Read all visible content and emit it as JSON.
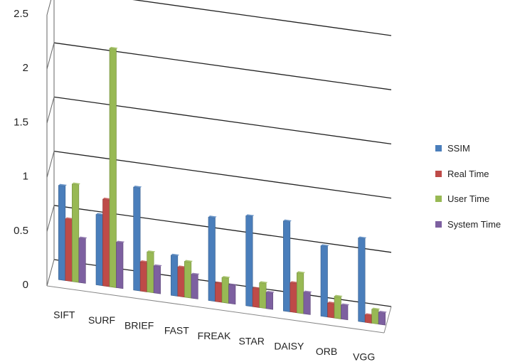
{
  "chart_data": {
    "type": "bar",
    "title": "",
    "xlabel": "",
    "ylabel": "",
    "categories": [
      "SIFT",
      "SURF",
      "BRIEF",
      "FAST",
      "FREAK",
      "STAR",
      "DAISY",
      "ORB",
      "VGG"
    ],
    "y_ticks": [
      "0",
      "0.5",
      "1",
      "1.5",
      "2",
      "2.5"
    ],
    "ylim": [
      0,
      2.5
    ],
    "grid": true,
    "legend_position": "right",
    "series": [
      {
        "name": "SSIM",
        "color": "#4a7ebb",
        "values": [
          0.87,
          0.65,
          0.95,
          0.37,
          0.77,
          0.83,
          0.83,
          0.65,
          0.77
        ]
      },
      {
        "name": "Real Time",
        "color": "#be4b48",
        "values": [
          0.57,
          0.8,
          0.27,
          0.27,
          0.17,
          0.17,
          0.27,
          0.13,
          0.07
        ]
      },
      {
        "name": "User Time",
        "color": "#98b954",
        "values": [
          0.9,
          2.2,
          0.37,
          0.33,
          0.23,
          0.23,
          0.37,
          0.2,
          0.13
        ]
      },
      {
        "name": "System Time",
        "color": "#7d60a0",
        "values": [
          0.41,
          0.42,
          0.25,
          0.22,
          0.17,
          0.15,
          0.2,
          0.13,
          0.11
        ]
      }
    ]
  }
}
